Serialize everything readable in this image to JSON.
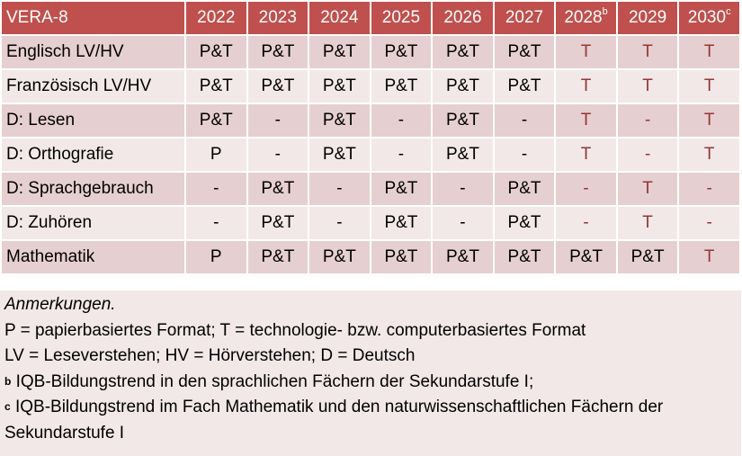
{
  "table": {
    "title": "VERA-8",
    "years": [
      {
        "label": "2022",
        "sup": ""
      },
      {
        "label": "2023",
        "sup": ""
      },
      {
        "label": "2024",
        "sup": ""
      },
      {
        "label": "2025",
        "sup": ""
      },
      {
        "label": "2026",
        "sup": ""
      },
      {
        "label": "2027",
        "sup": ""
      },
      {
        "label": "2028",
        "sup": "b"
      },
      {
        "label": "2029",
        "sup": ""
      },
      {
        "label": "2030",
        "sup": "c"
      }
    ],
    "rows": [
      {
        "subject": "Englisch LV/HV",
        "cells": [
          {
            "v": "P&T"
          },
          {
            "v": "P&T"
          },
          {
            "v": "P&T"
          },
          {
            "v": "P&T"
          },
          {
            "v": "P&T"
          },
          {
            "v": "P&T"
          },
          {
            "v": "T",
            "red": true
          },
          {
            "v": "T",
            "red": true
          },
          {
            "v": "T",
            "red": true
          }
        ]
      },
      {
        "subject": "Französisch LV/HV",
        "cells": [
          {
            "v": "P&T"
          },
          {
            "v": "P&T"
          },
          {
            "v": "P&T"
          },
          {
            "v": "P&T"
          },
          {
            "v": "P&T"
          },
          {
            "v": "P&T"
          },
          {
            "v": "T",
            "red": true
          },
          {
            "v": "T",
            "red": true
          },
          {
            "v": "T",
            "red": true
          }
        ]
      },
      {
        "subject": "D: Lesen",
        "cells": [
          {
            "v": "P&T"
          },
          {
            "v": "-"
          },
          {
            "v": "P&T"
          },
          {
            "v": "-"
          },
          {
            "v": "P&T"
          },
          {
            "v": "-"
          },
          {
            "v": "T",
            "red": true
          },
          {
            "v": "-",
            "red": true
          },
          {
            "v": "T",
            "red": true
          }
        ]
      },
      {
        "subject": "D: Orthografie",
        "cells": [
          {
            "v": "P"
          },
          {
            "v": "-"
          },
          {
            "v": "P&T"
          },
          {
            "v": "-"
          },
          {
            "v": "P&T"
          },
          {
            "v": "-"
          },
          {
            "v": "T",
            "red": true
          },
          {
            "v": "-",
            "red": true
          },
          {
            "v": "T",
            "red": true
          }
        ]
      },
      {
        "subject": "D: Sprachgebrauch",
        "cells": [
          {
            "v": "-"
          },
          {
            "v": "P&T"
          },
          {
            "v": "-"
          },
          {
            "v": "P&T"
          },
          {
            "v": "-"
          },
          {
            "v": "P&T"
          },
          {
            "v": "-",
            "red": true
          },
          {
            "v": "T",
            "red": true
          },
          {
            "v": "-",
            "red": true
          }
        ]
      },
      {
        "subject": "D: Zuhören",
        "cells": [
          {
            "v": "-"
          },
          {
            "v": "P&T"
          },
          {
            "v": "-"
          },
          {
            "v": "P&T"
          },
          {
            "v": "-"
          },
          {
            "v": "P&T"
          },
          {
            "v": "-",
            "red": true
          },
          {
            "v": "T",
            "red": true
          },
          {
            "v": "-",
            "red": true
          }
        ]
      },
      {
        "subject": "Mathematik",
        "cells": [
          {
            "v": "P"
          },
          {
            "v": "P&T"
          },
          {
            "v": "P&T"
          },
          {
            "v": "P&T"
          },
          {
            "v": "P&T"
          },
          {
            "v": "P&T"
          },
          {
            "v": "P&T"
          },
          {
            "v": "P&T"
          },
          {
            "v": "T",
            "red": true
          }
        ]
      }
    ]
  },
  "notes": {
    "heading": "Anmerkungen.",
    "line1": "P = papierbasiertes Format; T = technologie- bzw. computerbasiertes Format",
    "line2": "LV = Leseverstehen; HV = Hörverstehen; D = Deutsch",
    "b_mark": "b",
    "b_text": " IQB-Bildungstrend in den sprachlichen Fächern der Sekundarstufe I;",
    "c_mark": "c",
    "c_text": " IQB-Bildungstrend im Fach Mathematik und den naturwissenschaftlichen Fächern der Sekundarstufe I"
  },
  "colors": {
    "header": "#C0504D",
    "row_odd": "#E6CFD0",
    "row_even": "#F2E8E8",
    "highlight_text": "#943634"
  }
}
